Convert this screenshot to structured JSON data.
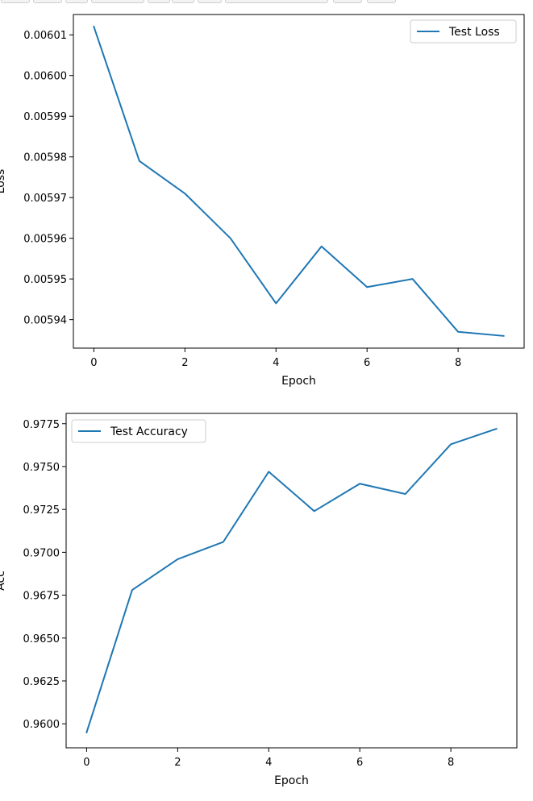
{
  "chart_data": [
    {
      "type": "line",
      "xlabel": "Epoch",
      "ylabel": "Loss",
      "x": [
        0,
        1,
        2,
        3,
        4,
        5,
        6,
        7,
        8,
        9
      ],
      "series": [
        {
          "name": "Test Loss",
          "color": "#1f77b4",
          "values": [
            0.006012,
            0.005979,
            0.005971,
            0.00596,
            0.005944,
            0.005958,
            0.005948,
            0.00595,
            0.005937,
            0.005936
          ]
        }
      ],
      "xlim": [
        -0.45,
        9.45
      ],
      "ylim": [
        0.005933,
        0.006015
      ],
      "xticks": [
        0,
        2,
        4,
        6,
        8
      ],
      "xtick_labels": [
        "0",
        "2",
        "4",
        "6",
        "8"
      ],
      "yticks": [
        0.00594,
        0.00595,
        0.00596,
        0.00597,
        0.00598,
        0.00599,
        0.006,
        0.00601
      ],
      "ytick_labels": [
        "0.00594",
        "0.00595",
        "0.00596",
        "0.00597",
        "0.00598",
        "0.00599",
        "0.00600",
        "0.00601"
      ],
      "grid": false,
      "legend": "top-right"
    },
    {
      "type": "line",
      "xlabel": "Epoch",
      "ylabel": "Acc",
      "x": [
        0,
        1,
        2,
        3,
        4,
        5,
        6,
        7,
        8,
        9
      ],
      "series": [
        {
          "name": "Test Accuracy",
          "color": "#1f77b4",
          "values": [
            0.9595,
            0.9678,
            0.9696,
            0.9706,
            0.9747,
            0.9724,
            0.974,
            0.9734,
            0.9763,
            0.9772
          ]
        }
      ],
      "xlim": [
        -0.45,
        9.45
      ],
      "ylim": [
        0.9586,
        0.9781
      ],
      "xticks": [
        0,
        2,
        4,
        6,
        8
      ],
      "xtick_labels": [
        "0",
        "2",
        "4",
        "6",
        "8"
      ],
      "yticks": [
        0.96,
        0.9625,
        0.965,
        0.9675,
        0.97,
        0.9725,
        0.975,
        0.9775
      ],
      "ytick_labels": [
        "0.9600",
        "0.9625",
        "0.9650",
        "0.9675",
        "0.9700",
        "0.9725",
        "0.9750",
        "0.9775"
      ],
      "grid": false,
      "legend": "top-left"
    }
  ]
}
